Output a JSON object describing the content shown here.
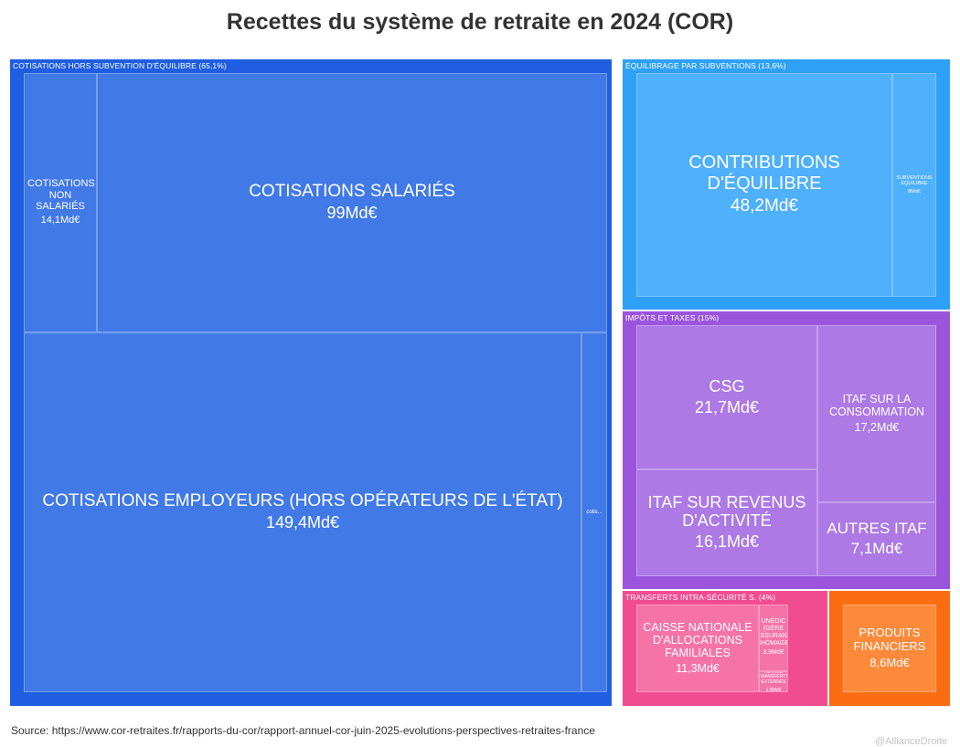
{
  "chart_data": {
    "type": "treemap",
    "title": "Recettes du système de retraite en 2024 (COR)",
    "unit": "Md€",
    "groups": [
      {
        "name": "COTISATIONS HORS SUBVENTION D'ÉQUILIBRE (65,1%)",
        "color": "#1f5ee0",
        "leaf_color": "#4179e6",
        "items": [
          {
            "name": "COTISATIONS NON SALARIÉS",
            "value_label": "14,1Md€",
            "value": 14.1
          },
          {
            "name": "COTISATIONS SALARIÉS",
            "value_label": "99Md€",
            "value": 99
          },
          {
            "name": "COTISATIONS EMPLOYEURS (HORS OPÉRATEURS DE L'ÉTAT)",
            "value_label": "149,4Md€",
            "value": 149.4
          },
          {
            "name": "cotis...",
            "value_label": "",
            "value": 4.2
          }
        ]
      },
      {
        "name": "ÉQUILIBRAGE PAR SUBVENTIONS (13,6%)",
        "color": "#2ea0f6",
        "leaf_color": "#4fb0fb",
        "items": [
          {
            "name": "CONTRIBUTIONS D'ÉQUILIBRE",
            "value_label": "48,2Md€",
            "value": 48.2
          },
          {
            "name": "SUBVENTIONS ÉQUILIBRE",
            "value_label": "8Md€",
            "value": 8
          }
        ]
      },
      {
        "name": "IMPÔTS ET TAXES (15%)",
        "color": "#9b55dc",
        "leaf_color": "#ac79e5",
        "items": [
          {
            "name": "CSG",
            "value_label": "21,7Md€",
            "value": 21.7
          },
          {
            "name": "ITAF SUR LA CONSOMMATION",
            "value_label": "17,2Md€",
            "value": 17.2
          },
          {
            "name": "ITAF SUR REVENUS D'ACTIVITÉ",
            "value_label": "16,1Md€",
            "value": 16.1
          },
          {
            "name": "AUTRES ITAF",
            "value_label": "7,1Md€",
            "value": 7.1
          }
        ]
      },
      {
        "name": "TRANSFERTS INTRA-SÉCURITÉ S. (4%)",
        "color": "#f24c91",
        "leaf_color": "#f673a8",
        "items": [
          {
            "name": "CAISSE NATIONALE D'ALLOCATIONS FAMILIALES",
            "value_label": "11,3Md€",
            "value": 11.3
          },
          {
            "name": "UNÉDIC (GÈRE L'ASSURANCE CHÔMAGE)",
            "value_label": "3,9Md€",
            "value": 3.9
          },
          {
            "name": "AUTRES TRANSFERTS EXTERNES",
            "value_label": "1,8Md€",
            "value": 1.8
          }
        ]
      },
      {
        "name": "",
        "color": "#fb6d13",
        "leaf_color": "#fd8a3b",
        "items": [
          {
            "name": "PRODUITS FINANCIERS",
            "value_label": "8,6Md€",
            "value": 8.6
          }
        ]
      }
    ]
  },
  "footer": {
    "source": "Source: https://www.cor-retraites.fr/rapports-du-cor/rapport-annuel-cor-juin-2025-evolutions-perspectives-retraites-france",
    "credit": "@AllianceDroite"
  }
}
